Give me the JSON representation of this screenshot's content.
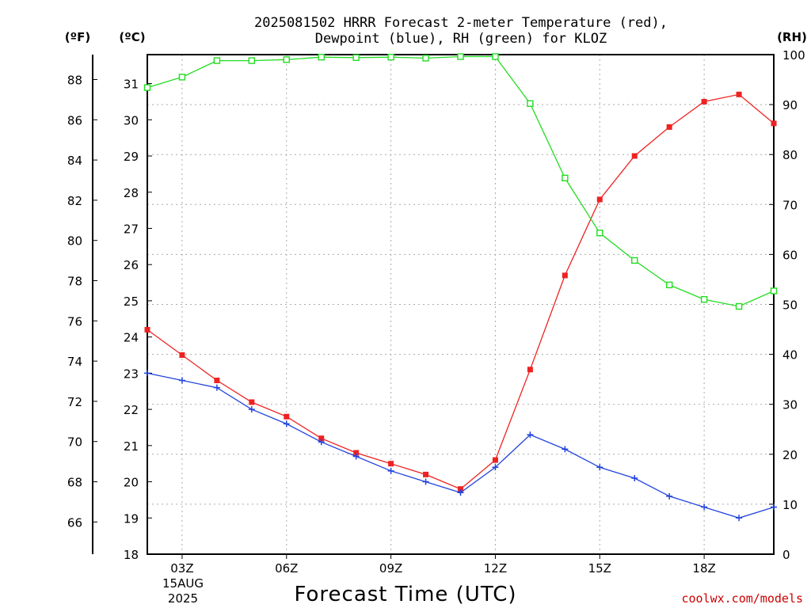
{
  "chart_data": {
    "type": "line",
    "title_line1": "2025081502 HRRR Forecast 2-meter Temperature (red),",
    "title_line2": "Dewpoint (blue), RH (green) for KLOZ",
    "xlabel": "Forecast Time (UTC)",
    "credit": "coolwx.com/models",
    "date_label": [
      "15AUG",
      "2025"
    ],
    "units": {
      "fahrenheit": "(ºF)",
      "celsius": "(ºC)",
      "rh": "(RH)"
    },
    "x_range": [
      2,
      20
    ],
    "x_ticks": [
      {
        "x": 3,
        "label": "03Z"
      },
      {
        "x": 6,
        "label": "06Z"
      },
      {
        "x": 9,
        "label": "09Z"
      },
      {
        "x": 12,
        "label": "12Z"
      },
      {
        "x": 15,
        "label": "15Z"
      },
      {
        "x": 18,
        "label": "18Z"
      }
    ],
    "y_celsius_range": [
      18,
      31.8
    ],
    "y_celsius_ticks": [
      18,
      19,
      20,
      21,
      22,
      23,
      24,
      25,
      26,
      27,
      28,
      29,
      30,
      31
    ],
    "y_fahrenheit_ticks": [
      66,
      68,
      70,
      72,
      74,
      76,
      78,
      80,
      82,
      84,
      86,
      88
    ],
    "y_rh_range": [
      0,
      100
    ],
    "y_rh_ticks": [
      0,
      10,
      20,
      30,
      40,
      50,
      60,
      70,
      80,
      90,
      100
    ],
    "grid": true,
    "hours": [
      2,
      3,
      4,
      5,
      6,
      7,
      8,
      9,
      10,
      11,
      12,
      13,
      14,
      15,
      16,
      17,
      18,
      19,
      20
    ],
    "series": [
      {
        "name": "Temperature",
        "color": "#ee2222",
        "marker": "filled-square",
        "axis": "celsius",
        "values": [
          24.2,
          23.5,
          22.8,
          22.2,
          21.8,
          21.2,
          20.8,
          20.5,
          20.2,
          19.8,
          20.6,
          23.1,
          25.7,
          27.8,
          29.0,
          29.8,
          30.5,
          30.7,
          29.9
        ]
      },
      {
        "name": "Dewpoint",
        "color": "#2244dd",
        "marker": "plus",
        "axis": "celsius",
        "values": [
          23.0,
          22.8,
          22.6,
          22.0,
          21.6,
          21.1,
          20.7,
          20.3,
          20.0,
          19.7,
          20.4,
          21.3,
          20.9,
          20.4,
          20.1,
          19.6,
          19.3,
          19.0,
          19.3
        ]
      },
      {
        "name": "RH",
        "color": "#22dd22",
        "marker": "open-square",
        "axis": "rh",
        "values": [
          93.4,
          95.5,
          98.8,
          98.8,
          99.0,
          99.5,
          99.4,
          99.5,
          99.3,
          99.6,
          99.6,
          90.2,
          75.3,
          64.3,
          58.8,
          53.9,
          51.0,
          49.6,
          52.7
        ]
      }
    ]
  }
}
